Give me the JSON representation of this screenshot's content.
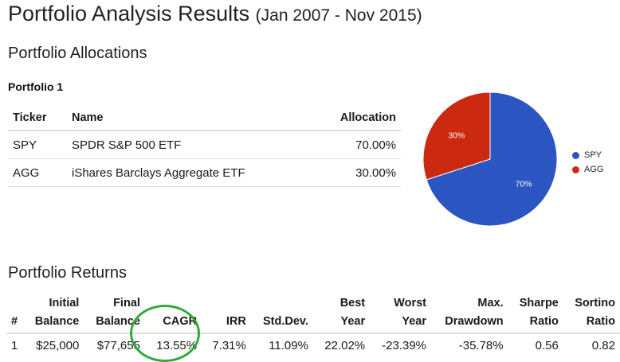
{
  "page": {
    "title": "Portfolio Analysis Results",
    "date_range": "(Jan 2007 - Nov 2015)"
  },
  "allocations": {
    "heading": "Portfolio Allocations",
    "portfolio_label": "Portfolio 1",
    "columns": [
      "Ticker",
      "Name",
      "Allocation"
    ],
    "rows": [
      {
        "ticker": "SPY",
        "name": "SPDR S&P 500 ETF",
        "allocation": "70.00%"
      },
      {
        "ticker": "AGG",
        "name": "iShares Barclays Aggregate ETF",
        "allocation": "30.00%"
      }
    ]
  },
  "chart_data": {
    "type": "pie",
    "categories": [
      "SPY",
      "AGG"
    ],
    "values": [
      70,
      30
    ],
    "labels": [
      "70%",
      "30%"
    ],
    "colors": [
      "#2b55c0",
      "#cc2a10"
    ],
    "legend": "right"
  },
  "returns": {
    "heading": "Portfolio Returns",
    "columns": [
      {
        "l1": "",
        "l2": "#"
      },
      {
        "l1": "Initial",
        "l2": "Balance"
      },
      {
        "l1": "Final",
        "l2": "Balance"
      },
      {
        "l1": "",
        "l2": "CAGR"
      },
      {
        "l1": "",
        "l2": "IRR"
      },
      {
        "l1": "",
        "l2": "Std.Dev."
      },
      {
        "l1": "Best",
        "l2": "Year"
      },
      {
        "l1": "Worst",
        "l2": "Year"
      },
      {
        "l1": "Max.",
        "l2": "Drawdown"
      },
      {
        "l1": "Sharpe",
        "l2": "Ratio"
      },
      {
        "l1": "Sortino",
        "l2": "Ratio"
      }
    ],
    "rows": [
      [
        "1",
        "$25,000",
        "$77,655",
        "13.55%",
        "7.31%",
        "11.09%",
        "22.02%",
        "-23.39%",
        "-35.78%",
        "0.56",
        "0.82"
      ]
    ]
  },
  "highlight": {
    "color": "#2faa3a",
    "target": "CAGR"
  }
}
